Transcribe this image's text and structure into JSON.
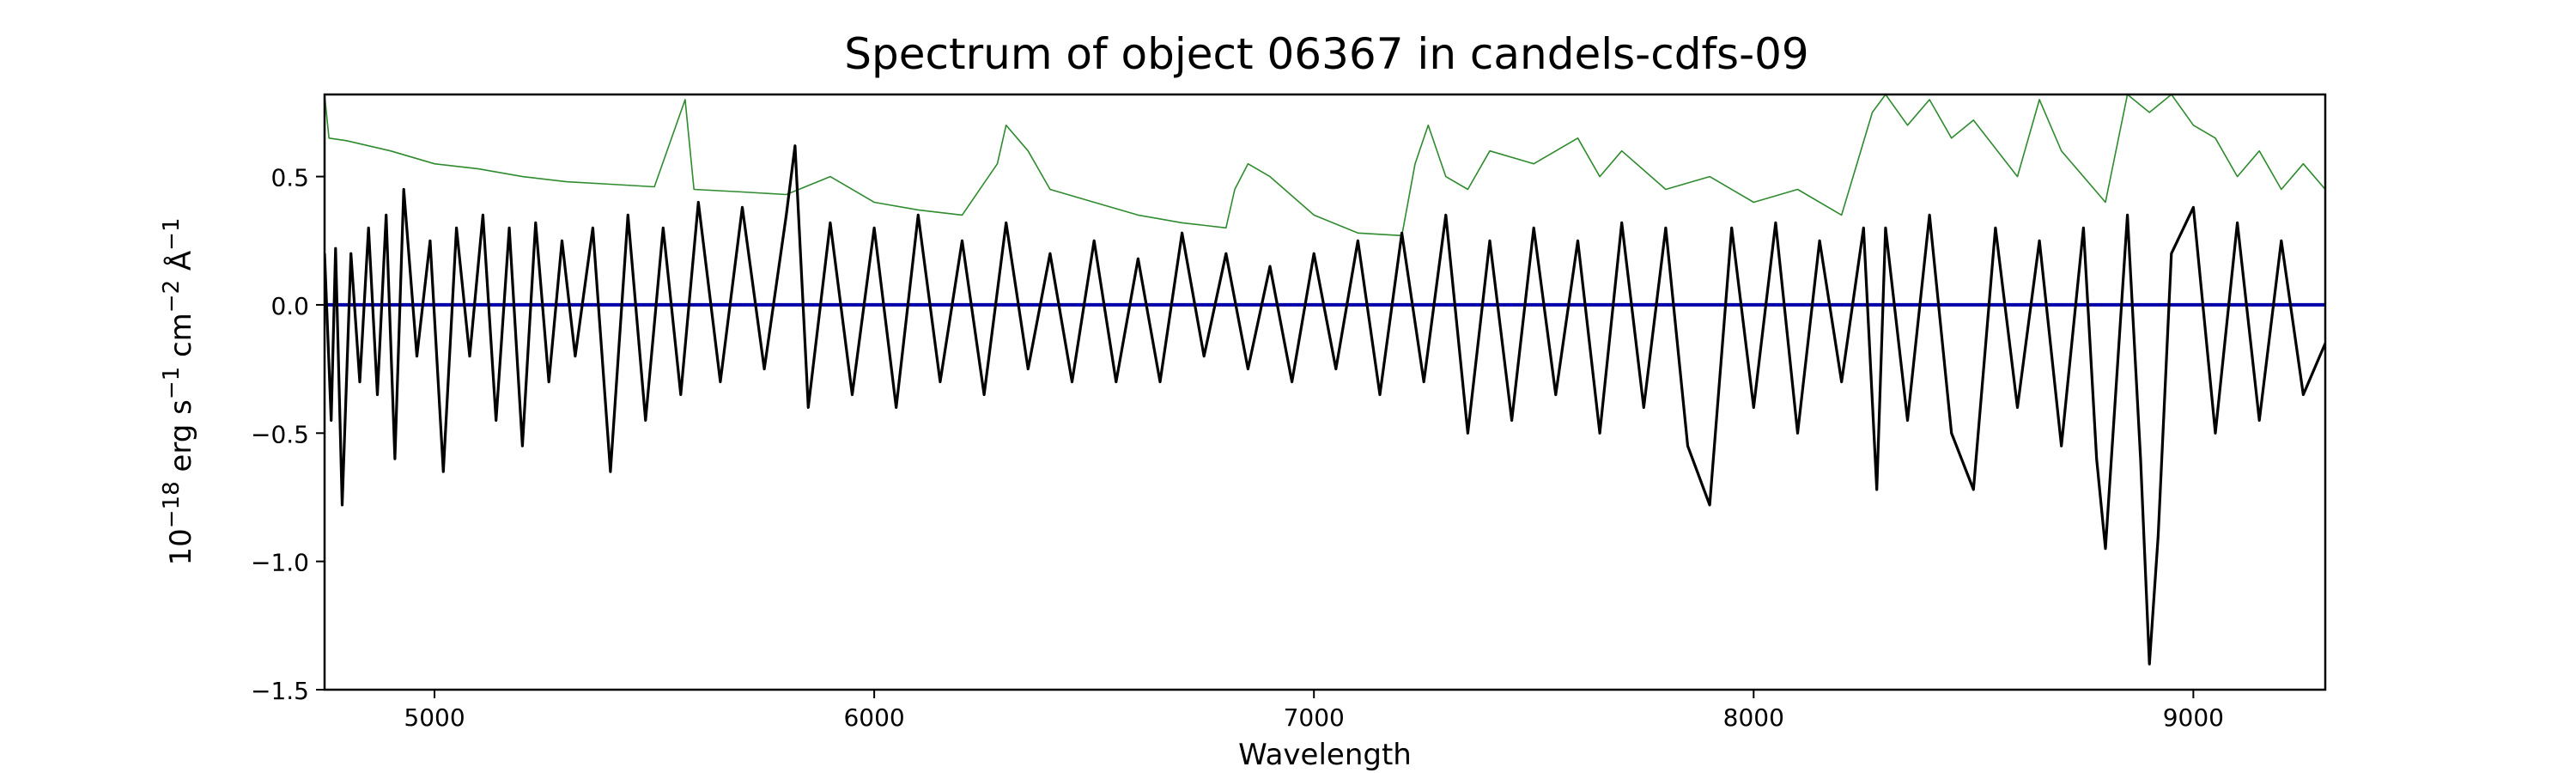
{
  "chart_data": {
    "type": "line",
    "title": "Spectrum of object 06367 in candels-cdfs-09",
    "xlabel": "Wavelength",
    "ylabel_parts": {
      "base": "10",
      "exp1": "−18",
      "unit1": " erg s",
      "exp2": "−1",
      "unit2": " cm",
      "exp3": "−2",
      "unit3": " Å",
      "exp4": "−1"
    },
    "xlim": [
      4750,
      9300
    ],
    "ylim": [
      -1.5,
      0.82
    ],
    "xticks": [
      5000,
      6000,
      7000,
      8000,
      9000
    ],
    "xtick_labels": [
      "5000",
      "6000",
      "7000",
      "8000",
      "9000"
    ],
    "yticks": [
      -1.5,
      -1.0,
      -0.5,
      0.0,
      0.5
    ],
    "ytick_labels": [
      "−1.5",
      "−1.0",
      "−0.5",
      "0.0",
      "0.5"
    ],
    "grid": false,
    "series": [
      {
        "role": "model",
        "color": "#0000aa",
        "x": [
          4750,
          9300
        ],
        "y": [
          0.0,
          0.0
        ]
      },
      {
        "role": "error",
        "color": "#2e8b2e",
        "x": [
          4750,
          4760,
          4800,
          4900,
          5000,
          5100,
          5200,
          5300,
          5400,
          5500,
          5570,
          5590,
          5700,
          5800,
          5900,
          6000,
          6100,
          6200,
          6280,
          6300,
          6350,
          6400,
          6500,
          6600,
          6700,
          6800,
          6820,
          6850,
          6900,
          7000,
          7100,
          7200,
          7230,
          7260,
          7300,
          7350,
          7400,
          7500,
          7600,
          7650,
          7700,
          7800,
          7900,
          8000,
          8100,
          8200,
          8270,
          8300,
          8350,
          8400,
          8450,
          8500,
          8600,
          8650,
          8700,
          8800,
          8850,
          8900,
          8950,
          9000,
          9050,
          9100,
          9150,
          9200,
          9250,
          9300
        ],
        "y": [
          0.82,
          0.65,
          0.64,
          0.6,
          0.55,
          0.53,
          0.5,
          0.48,
          0.47,
          0.46,
          0.8,
          0.45,
          0.44,
          0.43,
          0.5,
          0.4,
          0.37,
          0.35,
          0.55,
          0.7,
          0.6,
          0.45,
          0.4,
          0.35,
          0.32,
          0.3,
          0.45,
          0.55,
          0.5,
          0.35,
          0.28,
          0.27,
          0.55,
          0.7,
          0.5,
          0.45,
          0.6,
          0.55,
          0.65,
          0.5,
          0.6,
          0.45,
          0.5,
          0.4,
          0.45,
          0.35,
          0.75,
          0.82,
          0.7,
          0.8,
          0.65,
          0.72,
          0.5,
          0.8,
          0.6,
          0.4,
          0.82,
          0.75,
          0.82,
          0.7,
          0.65,
          0.5,
          0.6,
          0.45,
          0.55,
          0.45
        ]
      },
      {
        "role": "flux",
        "color": "#000000",
        "x": [
          4750,
          4765,
          4775,
          4790,
          4810,
          4830,
          4850,
          4870,
          4890,
          4910,
          4930,
          4960,
          4990,
          5020,
          5050,
          5080,
          5110,
          5140,
          5170,
          5200,
          5230,
          5260,
          5290,
          5320,
          5360,
          5400,
          5440,
          5480,
          5520,
          5560,
          5600,
          5650,
          5700,
          5750,
          5800,
          5820,
          5850,
          5900,
          5950,
          6000,
          6050,
          6100,
          6150,
          6200,
          6250,
          6300,
          6350,
          6400,
          6450,
          6500,
          6550,
          6600,
          6650,
          6700,
          6750,
          6800,
          6850,
          6900,
          6950,
          7000,
          7050,
          7100,
          7150,
          7200,
          7250,
          7300,
          7350,
          7400,
          7450,
          7500,
          7550,
          7600,
          7650,
          7700,
          7750,
          7800,
          7850,
          7900,
          7950,
          8000,
          8050,
          8100,
          8150,
          8200,
          8250,
          8280,
          8300,
          8350,
          8400,
          8450,
          8500,
          8550,
          8600,
          8650,
          8700,
          8750,
          8780,
          8800,
          8850,
          8880,
          8900,
          8920,
          8950,
          9000,
          9050,
          9100,
          9150,
          9200,
          9250,
          9300
        ],
        "y": [
          0.2,
          -0.45,
          0.22,
          -0.78,
          0.2,
          -0.3,
          0.3,
          -0.35,
          0.35,
          -0.6,
          0.45,
          -0.2,
          0.25,
          -0.65,
          0.3,
          -0.2,
          0.35,
          -0.45,
          0.3,
          -0.55,
          0.32,
          -0.3,
          0.25,
          -0.2,
          0.3,
          -0.65,
          0.35,
          -0.45,
          0.3,
          -0.35,
          0.4,
          -0.3,
          0.38,
          -0.25,
          0.35,
          0.62,
          -0.4,
          0.32,
          -0.35,
          0.3,
          -0.4,
          0.35,
          -0.3,
          0.25,
          -0.35,
          0.32,
          -0.25,
          0.2,
          -0.3,
          0.25,
          -0.3,
          0.18,
          -0.3,
          0.28,
          -0.2,
          0.2,
          -0.25,
          0.15,
          -0.3,
          0.2,
          -0.25,
          0.25,
          -0.35,
          0.28,
          -0.3,
          0.35,
          -0.5,
          0.25,
          -0.45,
          0.3,
          -0.35,
          0.25,
          -0.5,
          0.32,
          -0.4,
          0.3,
          -0.55,
          -0.78,
          0.3,
          -0.4,
          0.32,
          -0.5,
          0.25,
          -0.3,
          0.3,
          -0.72,
          0.3,
          -0.45,
          0.35,
          -0.5,
          -0.72,
          0.3,
          -0.4,
          0.25,
          -0.55,
          0.3,
          -0.6,
          -0.95,
          0.35,
          -0.6,
          -1.4,
          -0.9,
          0.2,
          0.38,
          -0.5,
          0.32,
          -0.45,
          0.25,
          -0.35,
          -0.15
        ]
      }
    ]
  }
}
